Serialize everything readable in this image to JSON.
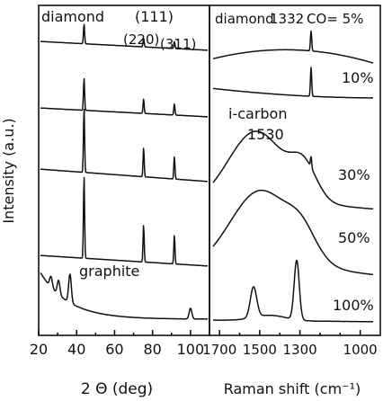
{
  "chart_data": [
    {
      "type": "line",
      "panel": "xrd",
      "xlabel": "2 Θ (deg)",
      "ylabel": "Intensity (a.u.)",
      "xlim": [
        20,
        110
      ],
      "x_ticks": [
        20,
        40,
        60,
        80,
        100
      ],
      "annotations": {
        "diamond": "diamond",
        "p111": "(111)",
        "p220": "(220)",
        "p311": "(311)",
        "graphite": "graphite"
      },
      "series": [
        {
          "peaks": [
            {
              "x": 43.9,
              "h": 1.0
            },
            {
              "x": 75.3,
              "h": 0.45
            },
            {
              "x": 91.5,
              "h": 0.35
            }
          ]
        },
        {
          "peaks": [
            {
              "x": 43.9,
              "h": 1.0
            },
            {
              "x": 75.3,
              "h": 0.45
            },
            {
              "x": 91.5,
              "h": 0.35
            }
          ]
        },
        {
          "peaks": [
            {
              "x": 43.9,
              "h": 1.0
            },
            {
              "x": 75.3,
              "h": 0.45
            },
            {
              "x": 91.5,
              "h": 0.35
            }
          ]
        },
        {
          "peaks": [
            {
              "x": 43.9,
              "h": 1.0
            },
            {
              "x": 75.3,
              "h": 0.45
            },
            {
              "x": 91.5,
              "h": 0.35
            }
          ]
        },
        {
          "peaks": [
            {
              "x": 26.5,
              "h": 0.3
            },
            {
              "x": 30.5,
              "h": 0.4
            },
            {
              "x": 36.5,
              "h": 0.8
            },
            {
              "x": 100,
              "h": 0.3
            }
          ]
        }
      ]
    },
    {
      "type": "line",
      "panel": "raman",
      "xlabel": "Raman shift (cm⁻¹)",
      "xlim": [
        1750,
        900
      ],
      "x_ticks": [
        1700,
        1500,
        1300,
        1000
      ],
      "annotations": {
        "diamond": "diamond",
        "peak_1332": "1332",
        "co_label": "CO= 5%",
        "icarbon": "i-carbon",
        "icarbon_peak": "1530"
      },
      "series": [
        {
          "label": "CO= 5%"
        },
        {
          "label": "10%"
        },
        {
          "label": "30%"
        },
        {
          "label": "50%"
        },
        {
          "label": "100%"
        }
      ]
    }
  ]
}
